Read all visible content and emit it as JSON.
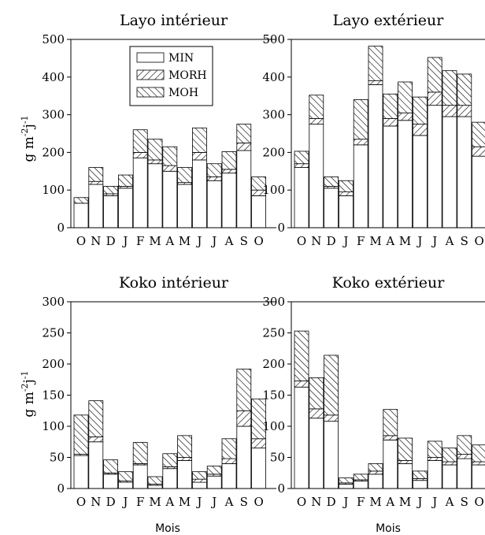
{
  "figure": {
    "ylabel_main": "g m",
    "ylabel_sup": "-2",
    "ylabel_tail": "j",
    "ylabel_sup2": "-1",
    "legend": [
      "MIN",
      "MORH",
      "MOH"
    ]
  },
  "chart_data": [
    {
      "type": "bar",
      "title": "Layo intérieur",
      "categories": [
        "O",
        "N",
        "D",
        "J",
        "F",
        "M",
        "A",
        "M",
        "J",
        "J",
        "A",
        "S",
        "O"
      ],
      "ylim": [
        0,
        500
      ],
      "yticks": [
        0,
        100,
        200,
        300,
        400,
        500
      ],
      "xlabel": "",
      "stacked": true,
      "series": [
        {
          "name": "MIN",
          "values": [
            65,
            115,
            85,
            105,
            185,
            170,
            150,
            115,
            180,
            125,
            145,
            205,
            85
          ]
        },
        {
          "name": "MORH",
          "values": [
            0,
            8,
            5,
            5,
            15,
            10,
            15,
            5,
            20,
            10,
            10,
            20,
            15
          ]
        },
        {
          "name": "MOH",
          "values": [
            15,
            37,
            20,
            30,
            60,
            55,
            50,
            40,
            65,
            35,
            47,
            50,
            35
          ]
        }
      ]
    },
    {
      "type": "bar",
      "title": "Layo extérieur",
      "categories": [
        "O",
        "N",
        "D",
        "J",
        "F",
        "M",
        "A",
        "M",
        "J",
        "J",
        "A",
        "S",
        "O"
      ],
      "ylim": [
        0,
        500
      ],
      "yticks": [
        0,
        100,
        200,
        300,
        400,
        500
      ],
      "xlabel": "",
      "stacked": true,
      "series": [
        {
          "name": "MIN",
          "values": [
            160,
            275,
            105,
            85,
            220,
            380,
            270,
            285,
            245,
            325,
            295,
            295,
            190
          ]
        },
        {
          "name": "MORH",
          "values": [
            10,
            15,
            5,
            10,
            15,
            10,
            20,
            20,
            30,
            35,
            30,
            30,
            25
          ]
        },
        {
          "name": "MOH",
          "values": [
            33,
            62,
            25,
            30,
            105,
            92,
            65,
            82,
            72,
            92,
            92,
            83,
            65
          ]
        }
      ]
    },
    {
      "type": "bar",
      "title": "Koko intérieur",
      "categories": [
        "O",
        "N",
        "D",
        "J",
        "F",
        "M",
        "A",
        "M",
        "J",
        "J",
        "A",
        "S",
        "O"
      ],
      "ylim": [
        0,
        300
      ],
      "yticks": [
        0,
        50,
        100,
        150,
        200,
        250,
        300
      ],
      "xlabel": "Mois",
      "stacked": true,
      "series": [
        {
          "name": "MIN",
          "values": [
            53,
            75,
            23,
            10,
            38,
            5,
            32,
            45,
            10,
            20,
            40,
            100,
            65
          ]
        },
        {
          "name": "MORH",
          "values": [
            2,
            8,
            2,
            2,
            2,
            2,
            3,
            5,
            5,
            3,
            8,
            25,
            15
          ]
        },
        {
          "name": "MOH",
          "values": [
            63,
            58,
            21,
            15,
            34,
            12,
            21,
            35,
            12,
            13,
            32,
            67,
            64
          ]
        }
      ]
    },
    {
      "type": "bar",
      "title": "Koko extérieur",
      "categories": [
        "O",
        "N",
        "D",
        "J",
        "F",
        "M",
        "A",
        "M",
        "J",
        "J",
        "A",
        "S",
        "O"
      ],
      "ylim": [
        0,
        300
      ],
      "yticks": [
        0,
        50,
        100,
        150,
        200,
        250,
        300
      ],
      "xlabel": "Mois",
      "stacked": true,
      "series": [
        {
          "name": "MIN",
          "values": [
            163,
            113,
            108,
            7,
            12,
            23,
            78,
            40,
            13,
            45,
            38,
            48,
            38
          ]
        },
        {
          "name": "MORH",
          "values": [
            10,
            15,
            10,
            2,
            2,
            5,
            7,
            5,
            3,
            5,
            5,
            7,
            5
          ]
        },
        {
          "name": "MOH",
          "values": [
            80,
            50,
            96,
            8,
            9,
            12,
            42,
            36,
            12,
            26,
            22,
            30,
            27
          ]
        }
      ]
    }
  ]
}
